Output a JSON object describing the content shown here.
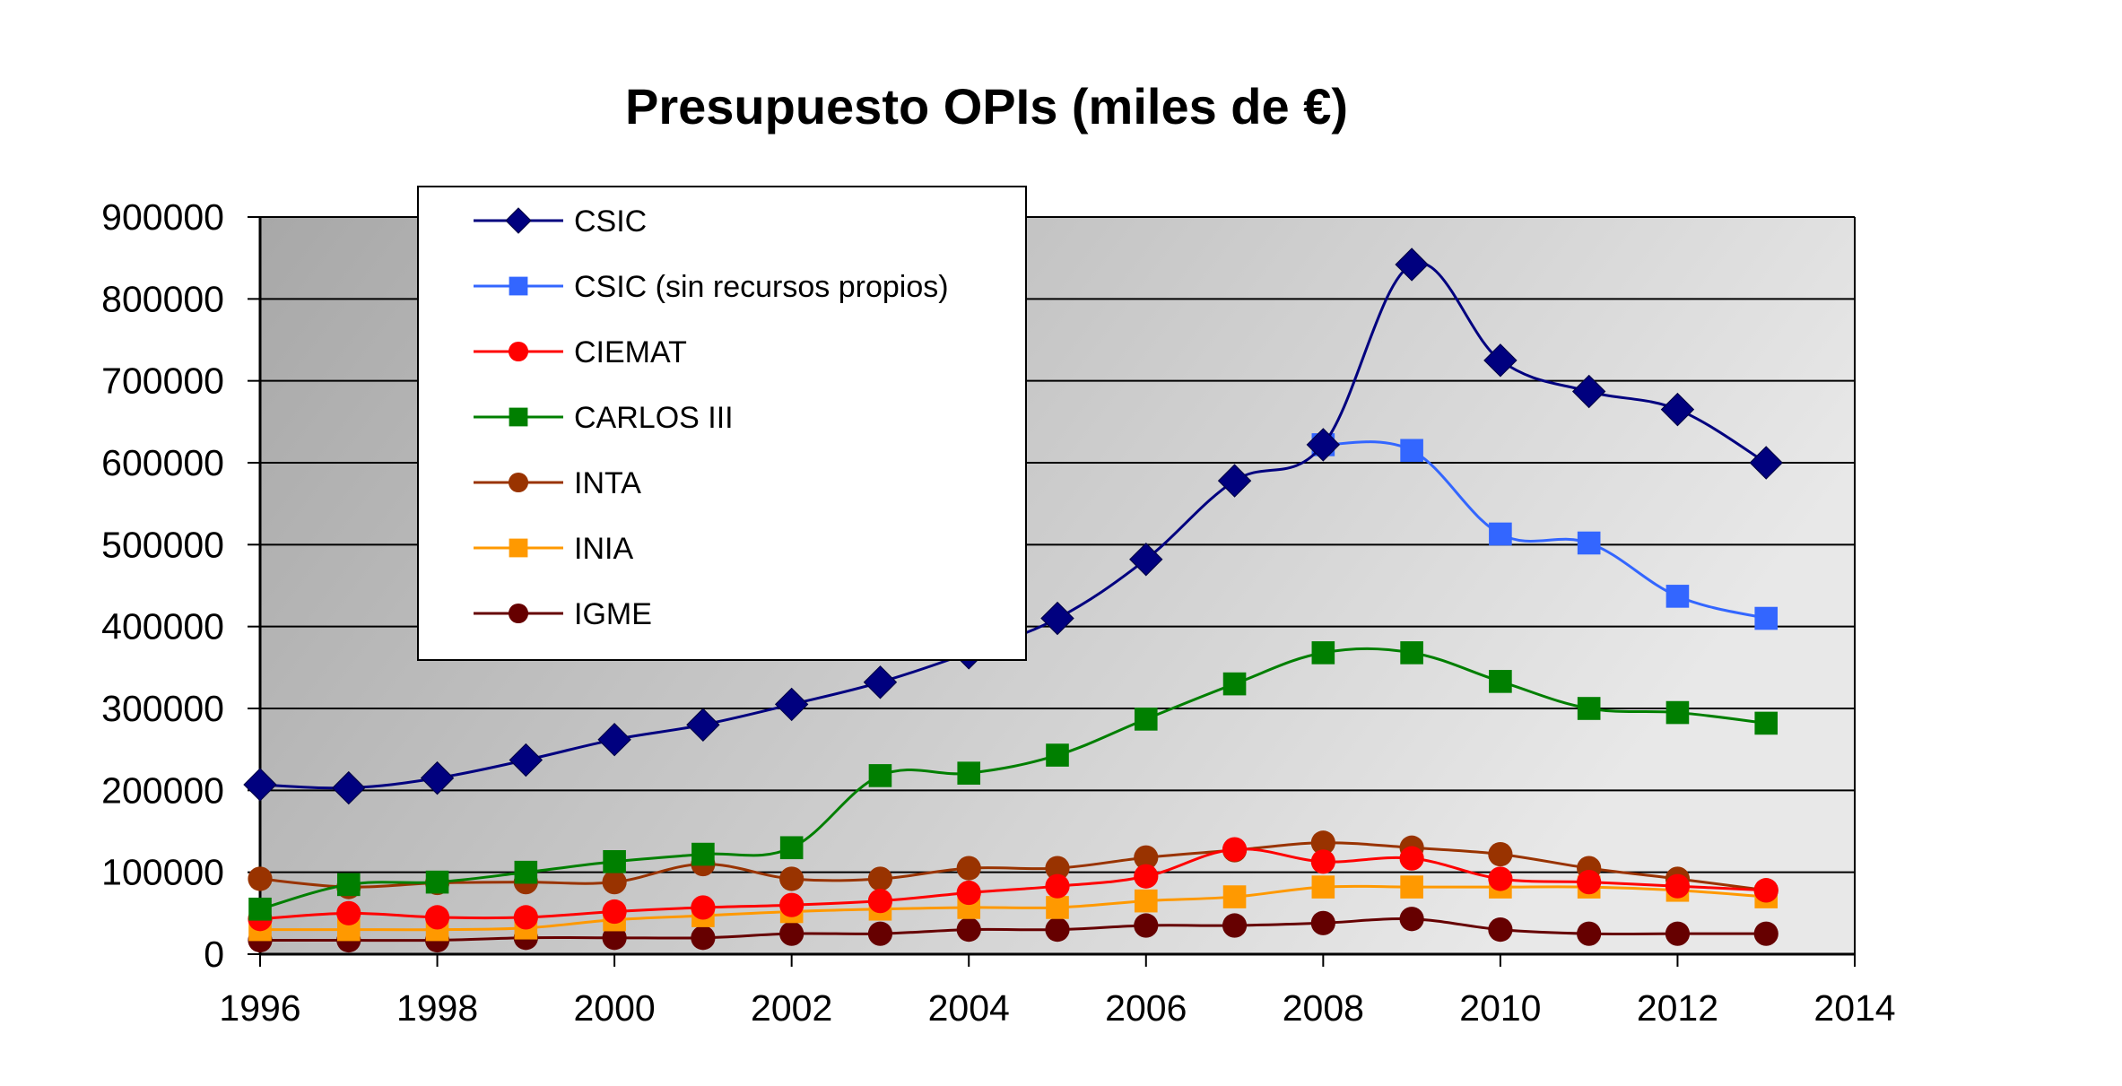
{
  "chart_data": {
    "type": "line",
    "title": "Presupuesto OPIs (miles de €)",
    "xlabel": "",
    "ylabel": "",
    "xlim": [
      1996,
      2014
    ],
    "ylim": [
      0,
      900000
    ],
    "x_ticks": [
      "1996",
      "1998",
      "2000",
      "2002",
      "2004",
      "2006",
      "2008",
      "2010",
      "2012",
      "2014"
    ],
    "y_ticks": [
      "0",
      "100000",
      "200000",
      "300000",
      "400000",
      "500000",
      "600000",
      "700000",
      "800000",
      "900000"
    ],
    "grid": true,
    "legend_position": "top-left",
    "series": [
      {
        "name": "CSIC",
        "color": "#00007F",
        "marker": "diamond",
        "x": [
          1996,
          1997,
          1998,
          1999,
          2000,
          2001,
          2002,
          2003,
          2004,
          2005,
          2006,
          2007,
          2008,
          2009,
          2010,
          2011,
          2012,
          2013
        ],
        "y": [
          207000,
          203000,
          215000,
          237000,
          262000,
          280000,
          305000,
          332000,
          368000,
          410000,
          482000,
          578000,
          622000,
          842000,
          725000,
          687000,
          665000,
          600000
        ]
      },
      {
        "name": "CSIC (sin recursos propios)",
        "color": "#3366FF",
        "marker": "square",
        "x": [
          2008,
          2009,
          2010,
          2011,
          2012,
          2013
        ],
        "y": [
          622000,
          615000,
          513000,
          502000,
          437000,
          410000
        ]
      },
      {
        "name": "CIEMAT",
        "color": "#FF0000",
        "marker": "circle",
        "x": [
          1996,
          1997,
          1998,
          1999,
          2000,
          2001,
          2002,
          2003,
          2004,
          2005,
          2006,
          2007,
          2008,
          2009,
          2010,
          2011,
          2012,
          2013
        ],
        "y": [
          43000,
          50000,
          45000,
          45000,
          52000,
          57000,
          60000,
          65000,
          75000,
          83000,
          95000,
          128000,
          113000,
          117000,
          92000,
          88000,
          83000,
          78000
        ]
      },
      {
        "name": "CARLOS III",
        "color": "#007F00",
        "marker": "square",
        "x": [
          1996,
          1997,
          1998,
          1999,
          2000,
          2001,
          2002,
          2003,
          2004,
          2005,
          2006,
          2007,
          2008,
          2009,
          2010,
          2011,
          2012,
          2013
        ],
        "y": [
          55000,
          85000,
          88000,
          100000,
          113000,
          122000,
          130000,
          218000,
          221000,
          243000,
          287000,
          330000,
          368000,
          368000,
          333000,
          300000,
          295000,
          282000
        ]
      },
      {
        "name": "INTA",
        "color": "#993300",
        "marker": "circle",
        "x": [
          1996,
          1997,
          1998,
          1999,
          2000,
          2001,
          2002,
          2003,
          2004,
          2005,
          2006,
          2007,
          2008,
          2009,
          2010,
          2011,
          2012,
          2013
        ],
        "y": [
          92000,
          82000,
          87000,
          88000,
          88000,
          110000,
          92000,
          92000,
          105000,
          105000,
          118000,
          127000,
          136000,
          130000,
          122000,
          105000,
          92000,
          78000
        ]
      },
      {
        "name": "INIA",
        "color": "#FF9900",
        "marker": "square",
        "x": [
          1996,
          1997,
          1998,
          1999,
          2000,
          2001,
          2002,
          2003,
          2004,
          2005,
          2006,
          2007,
          2008,
          2009,
          2010,
          2011,
          2012,
          2013
        ],
        "y": [
          30000,
          30000,
          30000,
          32000,
          42000,
          47000,
          52000,
          55000,
          57000,
          57000,
          65000,
          70000,
          82000,
          82000,
          82000,
          82000,
          78000,
          70000
        ]
      },
      {
        "name": "IGME",
        "color": "#660000",
        "marker": "circle",
        "x": [
          1996,
          1997,
          1998,
          1999,
          2000,
          2001,
          2002,
          2003,
          2004,
          2005,
          2006,
          2007,
          2008,
          2009,
          2010,
          2011,
          2012,
          2013
        ],
        "y": [
          17000,
          17000,
          17000,
          20000,
          20000,
          20000,
          25000,
          25000,
          30000,
          30000,
          35000,
          35000,
          38000,
          43000,
          30000,
          25000,
          25000,
          25000
        ]
      }
    ]
  }
}
